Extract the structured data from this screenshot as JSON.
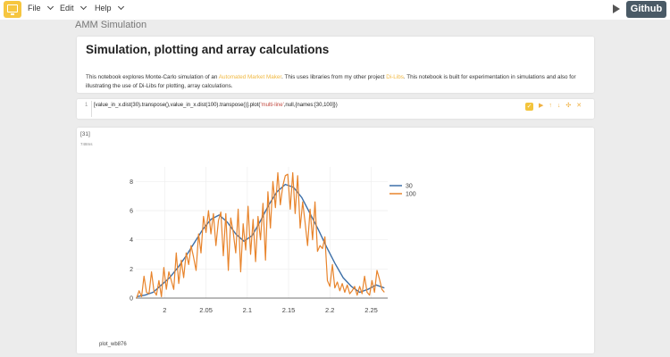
{
  "menubar": {
    "file": "File",
    "edit": "Edit",
    "help": "Help",
    "github": "Github"
  },
  "notebook": {
    "title": "AMM Simulation"
  },
  "markdown_cell": {
    "heading": "Simulation, plotting and array calculations",
    "text_1": "This notebook explores Monte-Carlo simulation of an ",
    "link_1": "Automated Market Maker",
    "text_2": ". This uses libraries from my other project ",
    "link_2": "Di-Libs",
    "text_3": ". This notebook is built for experimentation in simulations and also for illustrating the use of Di-Libs for plotting, array calculations."
  },
  "code_cell": {
    "line_number": "1",
    "code_1": "[value_in_x.dist(30).transpose(),value_in_x.dist(100).transpose()].plot(",
    "code_str": "'multi-line'",
    "code_2": ",null,{names:[30,100]})",
    "checkbox": "✓",
    "run": "▶",
    "up": "↑",
    "down": "↓",
    "add": "✣",
    "delete": "✕"
  },
  "output_cell": {
    "prompt": "[31]",
    "time": "748ms",
    "plot_id": "plot_wb876"
  },
  "colors": {
    "series_30": "#3d6fa8",
    "series_100": "#e8842c",
    "accent": "#f3c43c"
  },
  "chart_data": {
    "type": "line",
    "xlim": [
      1.965,
      2.27
    ],
    "ylim": [
      0,
      9
    ],
    "x_ticks": [
      2,
      2.05,
      2.1,
      2.15,
      2.2,
      2.25
    ],
    "y_ticks": [
      0,
      2,
      4,
      6,
      8
    ],
    "legend": "top-right",
    "series": [
      {
        "name": "30",
        "x": [
          1.966,
          1.976,
          1.986,
          1.996,
          2.006,
          2.016,
          2.026,
          2.036,
          2.046,
          2.056,
          2.066,
          2.076,
          2.086,
          2.096,
          2.106,
          2.116,
          2.126,
          2.136,
          2.146,
          2.156,
          2.166,
          2.176,
          2.186,
          2.196,
          2.206,
          2.216,
          2.226,
          2.236,
          2.246,
          2.256,
          2.266
        ],
        "values": [
          0.1,
          0.2,
          0.4,
          0.9,
          1.4,
          2.1,
          2.9,
          3.8,
          4.7,
          5.4,
          5.7,
          5.2,
          4.4,
          3.9,
          4.3,
          5.3,
          6.4,
          7.3,
          7.8,
          7.6,
          6.9,
          5.8,
          4.7,
          3.5,
          2.4,
          1.4,
          0.8,
          0.4,
          0.6,
          0.9,
          0.7
        ]
      },
      {
        "name": "100",
        "x": [
          1.966,
          1.969,
          1.972,
          1.975,
          1.978,
          1.981,
          1.984,
          1.987,
          1.99,
          1.993,
          1.996,
          1.999,
          2.002,
          2.005,
          2.008,
          2.011,
          2.014,
          2.017,
          2.02,
          2.023,
          2.026,
          2.029,
          2.032,
          2.035,
          2.038,
          2.041,
          2.044,
          2.047,
          2.05,
          2.053,
          2.056,
          2.059,
          2.062,
          2.065,
          2.068,
          2.071,
          2.074,
          2.077,
          2.08,
          2.083,
          2.086,
          2.089,
          2.092,
          2.095,
          2.098,
          2.101,
          2.104,
          2.107,
          2.11,
          2.113,
          2.116,
          2.119,
          2.122,
          2.125,
          2.128,
          2.131,
          2.134,
          2.137,
          2.14,
          2.143,
          2.146,
          2.149,
          2.152,
          2.155,
          2.158,
          2.161,
          2.164,
          2.167,
          2.17,
          2.173,
          2.176,
          2.179,
          2.182,
          2.185,
          2.188,
          2.191,
          2.194,
          2.197,
          2.2,
          2.203,
          2.206,
          2.209,
          2.212,
          2.215,
          2.218,
          2.221,
          2.224,
          2.227,
          2.23,
          2.233,
          2.236,
          2.239,
          2.242,
          2.245,
          2.248,
          2.251,
          2.254,
          2.257,
          2.26,
          2.263,
          2.266
        ],
        "values": [
          0,
          0.5,
          0.1,
          1.5,
          0.4,
          0.3,
          1.8,
          0.5,
          0.2,
          1.2,
          0.1,
          2.1,
          0.6,
          1.8,
          1.2,
          0.6,
          3.1,
          1.0,
          2.6,
          1.4,
          3.1,
          2.3,
          3.6,
          2.8,
          1.9,
          4.4,
          3.1,
          5.6,
          4.5,
          6.0,
          4.4,
          5.8,
          3.6,
          5.3,
          5.9,
          2.9,
          5.8,
          1.9,
          5.5,
          4.5,
          3.1,
          6.1,
          1.8,
          5.1,
          3.3,
          6.3,
          3.0,
          5.4,
          2.5,
          5.6,
          4.0,
          6.5,
          2.6,
          7.3,
          4.8,
          8.0,
          6.2,
          8.6,
          6.4,
          7.7,
          8.4,
          8.5,
          6.1,
          8.6,
          5.8,
          8.4,
          4.8,
          6.6,
          5.2,
          3.6,
          6.1,
          4.0,
          6.6,
          3.2,
          3.6,
          3.4,
          4.2,
          1.2,
          0.8,
          2.3,
          0.7,
          1.1,
          0.5,
          1.0,
          0.4,
          0.9,
          0.3,
          0.5,
          0.8,
          0.2,
          0.8,
          0.3,
          1.5,
          0.4,
          0.2,
          1.2,
          0.4,
          1.9,
          1.3,
          0.6,
          0.4
        ]
      }
    ]
  }
}
